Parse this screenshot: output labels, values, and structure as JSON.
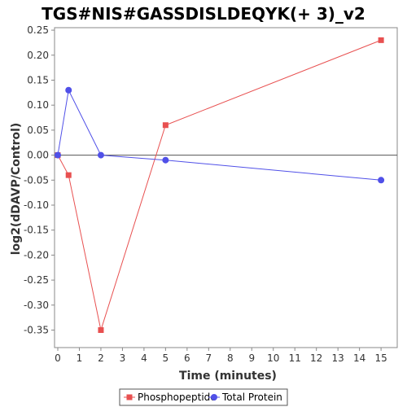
{
  "chart_data": {
    "type": "line",
    "title": "TGS#NIS#GASSDISLDEQYK(+ 3)_v2",
    "xlabel": "Time (minutes)",
    "ylabel": "log2(dDAVP/Control)",
    "xlim": [
      0,
      15.6
    ],
    "ylim": [
      -0.385,
      0.255
    ],
    "xticks": [
      0,
      1,
      2,
      3,
      4,
      5,
      6,
      7,
      8,
      9,
      10,
      11,
      12,
      13,
      14,
      15
    ],
    "yticks": [
      0.25,
      0.2,
      0.15,
      0.1,
      0.05,
      0.0,
      -0.05,
      -0.1,
      -0.15,
      -0.2,
      -0.25,
      -0.3,
      -0.35
    ],
    "ytick_labels": [
      "0.25",
      "0.20",
      "0.15",
      "0.10",
      "0.05",
      "0.00",
      "-0.05",
      "-0.10",
      "-0.15",
      "-0.20",
      "-0.25",
      "-0.30",
      "-0.35"
    ],
    "grid": false,
    "legend_position": "bottom",
    "series": [
      {
        "name": "Phosphopeptide",
        "color": "#e85050",
        "marker": "square",
        "x": [
          0,
          0.5,
          2,
          5,
          15
        ],
        "y": [
          0.0,
          -0.04,
          -0.35,
          0.06,
          0.23
        ]
      },
      {
        "name": "Total Protein",
        "color": "#5050e8",
        "marker": "circle",
        "x": [
          0,
          0.5,
          2,
          5,
          15
        ],
        "y": [
          0.0,
          0.13,
          0.0,
          -0.01,
          -0.05
        ]
      }
    ]
  }
}
